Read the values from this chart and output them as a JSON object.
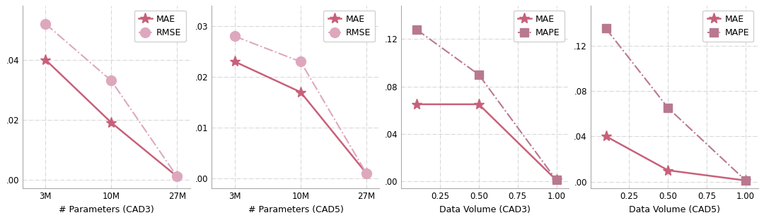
{
  "charts": [
    {
      "xlabel": "# Parameters (CAD3)",
      "x_data": [
        0,
        1,
        2
      ],
      "x_tick_positions": [
        0,
        1,
        2
      ],
      "x_tick_labels": [
        "3M",
        "10M",
        "27M"
      ],
      "x_lim": [
        -0.35,
        2.2
      ],
      "series": [
        {
          "label": "MAE",
          "y": [
            0.04,
            0.019,
            0.001
          ],
          "marker": "*",
          "linestyle": "-",
          "color": "#c8607a",
          "markersize": 11,
          "linewidth": 1.8
        },
        {
          "label": "RMSE",
          "y": [
            0.052,
            0.033,
            0.001
          ],
          "marker": "o",
          "linestyle": "-.",
          "color": "#dda8be",
          "markersize": 10,
          "linewidth": 1.5
        }
      ],
      "ylim": [
        -0.003,
        0.058
      ],
      "yticks": [
        0.0,
        0.02,
        0.04
      ],
      "ytick_labels": [
        ".00",
        ".02",
        ".04"
      ]
    },
    {
      "xlabel": "# Parameters (CAD5)",
      "x_data": [
        0,
        1,
        2
      ],
      "x_tick_positions": [
        0,
        1,
        2
      ],
      "x_tick_labels": [
        "3M",
        "10M",
        "27M"
      ],
      "x_lim": [
        -0.35,
        2.2
      ],
      "series": [
        {
          "label": "MAE",
          "y": [
            0.023,
            0.017,
            0.001
          ],
          "marker": "*",
          "linestyle": "-",
          "color": "#c8607a",
          "markersize": 11,
          "linewidth": 1.8
        },
        {
          "label": "RMSE",
          "y": [
            0.028,
            0.023,
            0.001
          ],
          "marker": "o",
          "linestyle": "-.",
          "color": "#dda8be",
          "markersize": 10,
          "linewidth": 1.5
        }
      ],
      "ylim": [
        -0.002,
        0.034
      ],
      "yticks": [
        0.0,
        0.01,
        0.02,
        0.03
      ],
      "ytick_labels": [
        ".00",
        ".01",
        ".02",
        ".03"
      ]
    },
    {
      "xlabel": "Data Volume (CAD3)",
      "x_data": [
        0.1,
        0.5,
        1.0
      ],
      "x_tick_positions": [
        0.25,
        0.5,
        0.75,
        1.0
      ],
      "x_tick_labels": [
        "0.25",
        "0.50",
        "0.75",
        "1.00"
      ],
      "x_lim": [
        0.0,
        1.08
      ],
      "series": [
        {
          "label": "MAE",
          "y": [
            0.065,
            0.065,
            0.001
          ],
          "marker": "*",
          "linestyle": "-",
          "color": "#c8607a",
          "markersize": 11,
          "linewidth": 1.8
        },
        {
          "label": "MAPE",
          "y": [
            0.128,
            0.09,
            0.001
          ],
          "marker": "s",
          "linestyle": "-.",
          "color": "#b87890",
          "markersize": 9,
          "linewidth": 1.5
        }
      ],
      "ylim": [
        -0.006,
        0.148
      ],
      "yticks": [
        0.0,
        0.04,
        0.08,
        0.12
      ],
      "ytick_labels": [
        ".00",
        ".04",
        ".08",
        ".12"
      ]
    },
    {
      "xlabel": "Data Volume (CAD5)",
      "x_data": [
        0.1,
        0.5,
        1.0
      ],
      "x_tick_positions": [
        0.25,
        0.5,
        0.75,
        1.0
      ],
      "x_tick_labels": [
        "0.25",
        "0.50",
        "0.75",
        "1.00"
      ],
      "x_lim": [
        0.0,
        1.08
      ],
      "series": [
        {
          "label": "MAE",
          "y": [
            0.04,
            0.01,
            0.001
          ],
          "marker": "*",
          "linestyle": "-",
          "color": "#c8607a",
          "markersize": 11,
          "linewidth": 1.8
        },
        {
          "label": "MAPE",
          "y": [
            0.135,
            0.065,
            0.001
          ],
          "marker": "s",
          "linestyle": "-.",
          "color": "#b87890",
          "markersize": 9,
          "linewidth": 1.5
        }
      ],
      "ylim": [
        -0.006,
        0.155
      ],
      "yticks": [
        0.0,
        0.04,
        0.08,
        0.12
      ],
      "ytick_labels": [
        ".00",
        ".04",
        ".08",
        ".12"
      ]
    }
  ],
  "background_color": "#ffffff",
  "grid_color": "#cccccc",
  "tick_fontsize": 8.5,
  "label_fontsize": 9,
  "legend_fontsize": 9
}
